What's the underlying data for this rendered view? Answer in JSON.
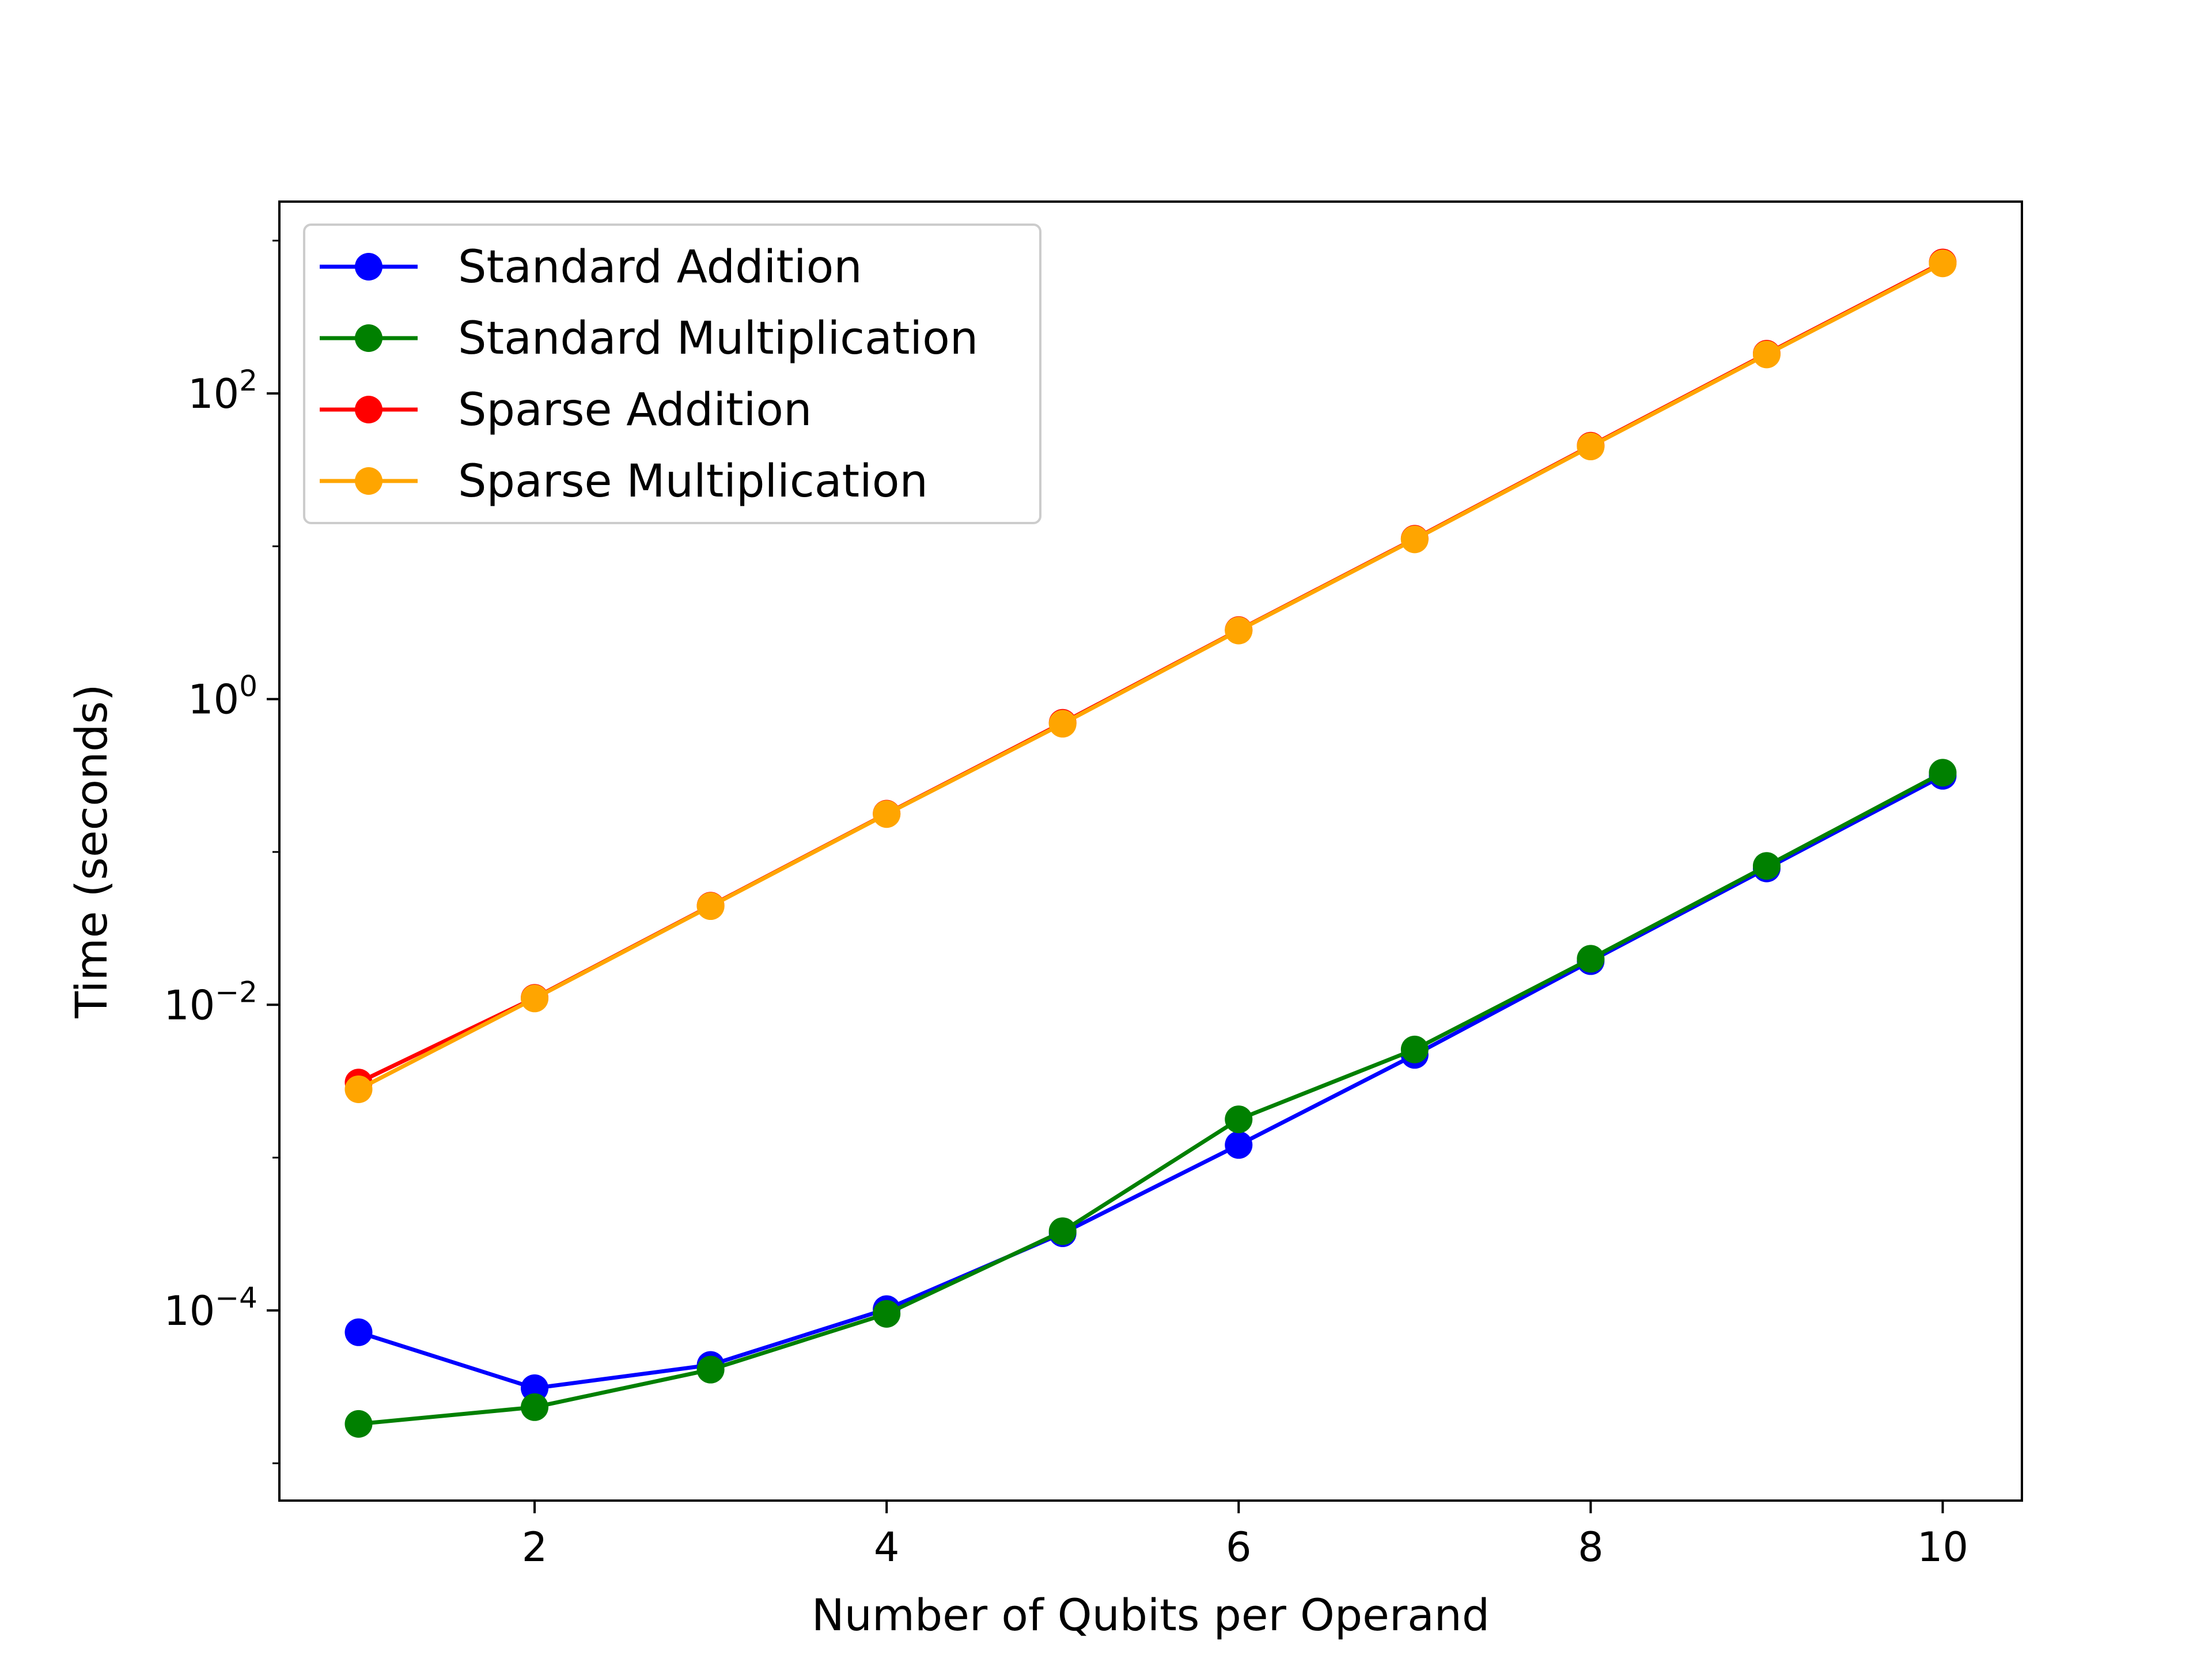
{
  "chart_data": {
    "type": "line",
    "title": "",
    "xlabel": "Number of Qubits per Operand",
    "ylabel": "Time (seconds)",
    "yscale": "log",
    "xlim": [
      0.55,
      10.45
    ],
    "ylim": [
      5.7e-06,
      1800
    ],
    "xticks": [
      2,
      4,
      6,
      8,
      10
    ],
    "yticks": [
      {
        "value": 0.0001,
        "base": "10",
        "exp": "−4"
      },
      {
        "value": 0.01,
        "base": "10",
        "exp": "−2"
      },
      {
        "value": 1,
        "base": "10",
        "exp": "0"
      },
      {
        "value": 100,
        "base": "10",
        "exp": "2"
      }
    ],
    "grid": false,
    "legend_position": "top-left",
    "x": [
      1,
      2,
      3,
      4,
      5,
      6,
      7,
      8,
      9,
      10
    ],
    "series": [
      {
        "name": "Standard Addition",
        "color": "#0000ff",
        "values": [
          7.2e-05,
          3.1e-05,
          4.4e-05,
          0.000102,
          0.00032,
          0.00121,
          0.0047,
          0.0193,
          0.078,
          0.315
        ]
      },
      {
        "name": "Standard Multiplication",
        "color": "#008000",
        "values": [
          1.81e-05,
          2.33e-05,
          4.1e-05,
          9.5e-05,
          0.00033,
          0.00178,
          0.0051,
          0.02,
          0.081,
          0.33
        ]
      },
      {
        "name": "Sparse Addition",
        "color": "#ff0000",
        "values": [
          0.0031,
          0.0111,
          0.0445,
          0.178,
          0.7,
          2.83,
          11.2,
          45.5,
          182,
          720
        ]
      },
      {
        "name": "Sparse Multiplication",
        "color": "#ffa500",
        "values": [
          0.0028,
          0.011,
          0.0442,
          0.177,
          0.69,
          2.81,
          11.1,
          45.0,
          180,
          710
        ]
      }
    ]
  }
}
